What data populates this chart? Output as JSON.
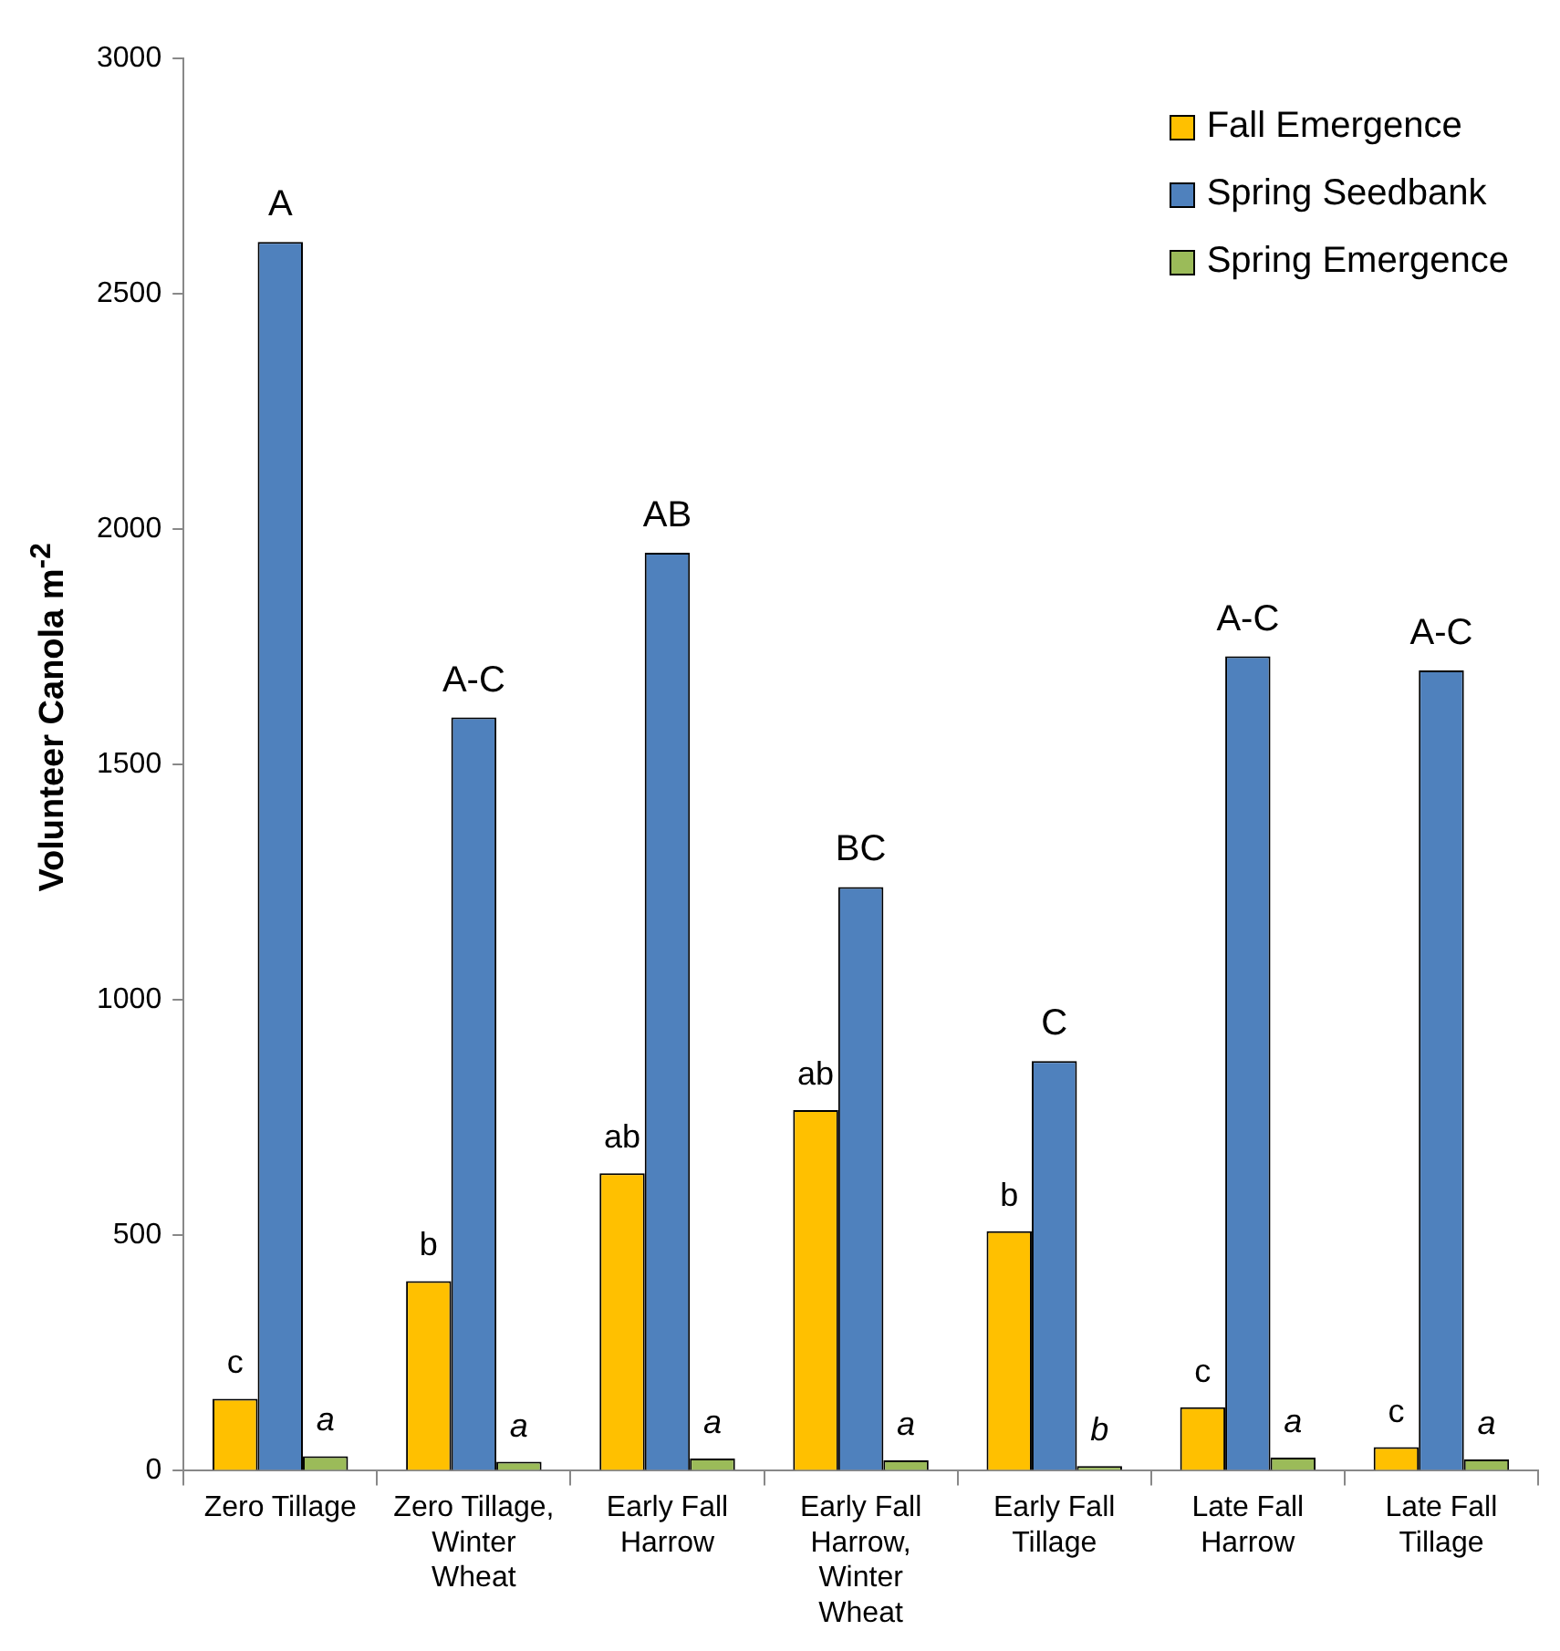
{
  "chart_data": {
    "type": "bar",
    "ylabel": "Volunteer Canola m$^{-2}$",
    "categories": [
      "Zero Tillage",
      "Zero Tillage, Winter Wheat",
      "Early Fall Harrow",
      "Early Fall Harrow, Winter Wheat",
      "Early Fall Tillage",
      "Late Fall Harrow",
      "Late Fall Tillage"
    ],
    "series": [
      {
        "name": "Fall Emergence",
        "color": "#ffc000",
        "values": [
          153,
          403,
          632,
          766,
          509,
          135,
          50
        ],
        "value_labels": [
          "c",
          "b",
          "ab",
          "ab",
          "b",
          "c",
          "c"
        ]
      },
      {
        "name": "Spring Seedbank",
        "color": "#4f81bd",
        "values": [
          2610,
          1600,
          1950,
          1240,
          870,
          1730,
          1700
        ],
        "value_labels": [
          "A",
          "A-C",
          "AB",
          "BC",
          "C",
          "A-C",
          "A-C"
        ]
      },
      {
        "name": "Spring Emergence",
        "color": "#9bbb59",
        "values": [
          31,
          19,
          26,
          22,
          10,
          28,
          24
        ],
        "value_labels": [
          "a",
          "a",
          "a",
          "a",
          "b",
          "a",
          "a"
        ]
      }
    ],
    "ylim": [
      0,
      3000
    ],
    "yticks": [
      0,
      500,
      1000,
      1500,
      2000,
      2500,
      3000
    ],
    "grid": false,
    "legend": "top right"
  }
}
